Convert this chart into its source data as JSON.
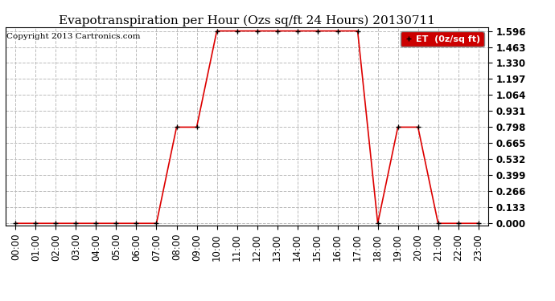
{
  "title": "Evapotranspiration per Hour (Ozs sq/ft 24 Hours) 20130711",
  "copyright": "Copyright 2013 Cartronics.com",
  "legend_label": "ET  (0z/sq ft)",
  "x_labels": [
    "00:00",
    "01:00",
    "02:00",
    "03:00",
    "04:00",
    "05:00",
    "06:00",
    "07:00",
    "08:00",
    "09:00",
    "10:00",
    "11:00",
    "12:00",
    "13:00",
    "14:00",
    "15:00",
    "16:00",
    "17:00",
    "18:00",
    "19:00",
    "20:00",
    "21:00",
    "22:00",
    "23:00"
  ],
  "y_values": [
    0.0,
    0.0,
    0.0,
    0.0,
    0.0,
    0.0,
    0.0,
    0.0,
    0.798,
    0.798,
    1.596,
    1.596,
    1.596,
    1.596,
    1.596,
    1.596,
    1.596,
    1.596,
    0.0,
    0.798,
    0.798,
    0.0,
    0.0,
    0.0
  ],
  "y_ticks": [
    0.0,
    0.133,
    0.266,
    0.399,
    0.532,
    0.665,
    0.798,
    0.931,
    1.064,
    1.197,
    1.33,
    1.463,
    1.596
  ],
  "ylim_max": 1.596,
  "line_color": "#dd0000",
  "marker_color": "#000000",
  "legend_bg": "#cc0000",
  "legend_text_color": "#ffffff",
  "background_color": "#ffffff",
  "grid_color": "#bbbbbb",
  "title_fontsize": 11,
  "copyright_fontsize": 7.5,
  "tick_fontsize": 8.5,
  "legend_fontsize": 8
}
